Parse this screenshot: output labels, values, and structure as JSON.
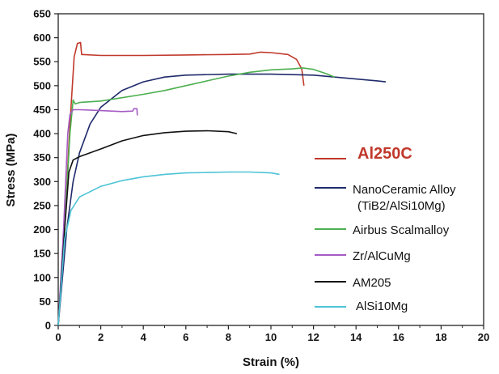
{
  "chart_data": {
    "type": "line",
    "title": "",
    "xlabel": "Strain (%)",
    "ylabel": "Stress (MPa)",
    "xlim": [
      0,
      20
    ],
    "ylim": [
      0,
      650
    ],
    "x_ticks": [
      "0",
      "2",
      "4",
      "6",
      "8",
      "10",
      "12",
      "14",
      "16",
      "18",
      "20"
    ],
    "y_ticks": [
      "0",
      "50",
      "100",
      "150",
      "200",
      "250",
      "300",
      "350",
      "400",
      "450",
      "500",
      "550",
      "600",
      "650"
    ],
    "grid": false,
    "legend_position": "right",
    "series": [
      {
        "name": "Al250C",
        "color": "#c0392b",
        "highlight": true,
        "points": [
          [
            0,
            0
          ],
          [
            0.3,
            200
          ],
          [
            0.55,
            420
          ],
          [
            0.75,
            560
          ],
          [
            0.9,
            588
          ],
          [
            1.05,
            590
          ],
          [
            1.1,
            565
          ],
          [
            2,
            563
          ],
          [
            4,
            563
          ],
          [
            6,
            564
          ],
          [
            8,
            565
          ],
          [
            9,
            566
          ],
          [
            9.5,
            570
          ],
          [
            10,
            569
          ],
          [
            10.8,
            565
          ],
          [
            11.2,
            555
          ],
          [
            11.45,
            535
          ],
          [
            11.55,
            500
          ]
        ]
      },
      {
        "name": "NanoCeramic Alloy (TiB2/AlSi10Mg)",
        "color": "#1f2a6b",
        "points": [
          [
            0,
            0
          ],
          [
            0.4,
            200
          ],
          [
            0.7,
            300
          ],
          [
            1,
            360
          ],
          [
            1.5,
            420
          ],
          [
            2,
            455
          ],
          [
            3,
            490
          ],
          [
            4,
            508
          ],
          [
            5,
            518
          ],
          [
            6,
            522
          ],
          [
            8,
            524
          ],
          [
            10,
            524
          ],
          [
            12,
            522
          ],
          [
            13,
            518
          ],
          [
            14,
            514
          ],
          [
            15,
            510
          ],
          [
            15.4,
            508
          ]
        ]
      },
      {
        "name": "Airbus Scalmalloy",
        "color": "#4caf50",
        "points": [
          [
            0,
            0
          ],
          [
            0.3,
            200
          ],
          [
            0.55,
            400
          ],
          [
            0.7,
            470
          ],
          [
            0.8,
            462
          ],
          [
            1,
            465
          ],
          [
            2,
            468
          ],
          [
            3,
            475
          ],
          [
            4,
            482
          ],
          [
            5,
            490
          ],
          [
            6,
            500
          ],
          [
            7,
            510
          ],
          [
            8,
            520
          ],
          [
            9,
            528
          ],
          [
            10,
            533
          ],
          [
            11,
            535
          ],
          [
            11.5,
            537
          ],
          [
            12,
            534
          ],
          [
            12.6,
            525
          ],
          [
            13,
            518
          ]
        ]
      },
      {
        "name": "Zr/AlCuMg",
        "color": "#a45bc4",
        "points": [
          [
            0,
            0
          ],
          [
            0.25,
            200
          ],
          [
            0.45,
            400
          ],
          [
            0.55,
            440
          ],
          [
            0.7,
            450
          ],
          [
            1,
            450
          ],
          [
            2,
            448
          ],
          [
            3,
            446
          ],
          [
            3.5,
            447
          ],
          [
            3.55,
            452
          ],
          [
            3.7,
            452
          ],
          [
            3.72,
            438
          ]
        ]
      },
      {
        "name": "AM205",
        "color": "#111111",
        "points": [
          [
            0,
            0
          ],
          [
            0.3,
            200
          ],
          [
            0.5,
            320
          ],
          [
            0.7,
            345
          ],
          [
            1,
            352
          ],
          [
            2,
            368
          ],
          [
            3,
            385
          ],
          [
            4,
            396
          ],
          [
            5,
            402
          ],
          [
            6,
            405
          ],
          [
            7,
            406
          ],
          [
            8,
            404
          ],
          [
            8.4,
            400
          ]
        ]
      },
      {
        "name": "AlSi10Mg",
        "color": "#4dc3d6",
        "points": [
          [
            0,
            0
          ],
          [
            0.3,
            180
          ],
          [
            0.6,
            240
          ],
          [
            1,
            268
          ],
          [
            2,
            290
          ],
          [
            3,
            302
          ],
          [
            4,
            310
          ],
          [
            5,
            315
          ],
          [
            6,
            318
          ],
          [
            7,
            319
          ],
          [
            8,
            320
          ],
          [
            9,
            320
          ],
          [
            10,
            318
          ],
          [
            10.4,
            315
          ]
        ]
      }
    ],
    "legend": [
      {
        "text": "Al250C",
        "color": "#c0392b",
        "highlight": true
      },
      {
        "text": "NanoCeramic Alloy",
        "subtext": "(TiB2/AlSi10Mg)",
        "color": "#1f2a6b"
      },
      {
        "text": "Airbus Scalmalloy",
        "color": "#4caf50"
      },
      {
        "text": "Zr/AlCuMg",
        "color": "#a45bc4"
      },
      {
        "text": "AM205",
        "color": "#111111"
      },
      {
        "text": "AlSi10Mg",
        "color": "#4dc3d6"
      }
    ]
  }
}
